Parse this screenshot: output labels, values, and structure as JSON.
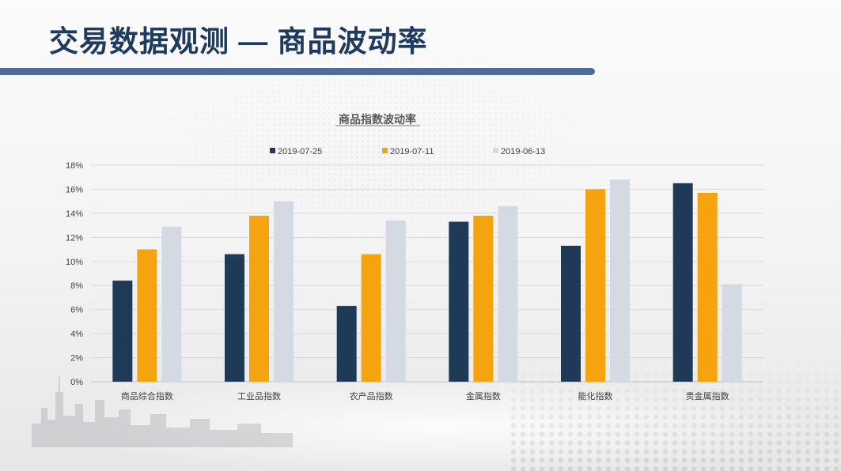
{
  "page": {
    "title": "交易数据观测 — 商品波动率"
  },
  "chart_data": {
    "type": "bar",
    "title": "商品指数波动率",
    "categories": [
      "商品综合指数",
      "工业品指数",
      "农产品指数",
      "金属指数",
      "能化指数",
      "贵金属指数"
    ],
    "series": [
      {
        "name": "2019-07-25",
        "color": "#1f3a56",
        "values": [
          8.4,
          10.6,
          6.3,
          13.3,
          11.3,
          16.5
        ]
      },
      {
        "name": "2019-07-11",
        "color": "#f5a30f",
        "values": [
          11.0,
          13.8,
          10.6,
          13.8,
          16.0,
          15.7
        ]
      },
      {
        "name": "2019-06-13",
        "color": "#d4dae3",
        "values": [
          12.9,
          15.0,
          13.4,
          14.6,
          16.8,
          8.1
        ]
      }
    ],
    "ylim": [
      0,
      18
    ],
    "yticks": [
      "0%",
      "2%",
      "4%",
      "6%",
      "8%",
      "10%",
      "12%",
      "14%",
      "16%",
      "18%"
    ],
    "grid": true,
    "legend_position": "top"
  }
}
